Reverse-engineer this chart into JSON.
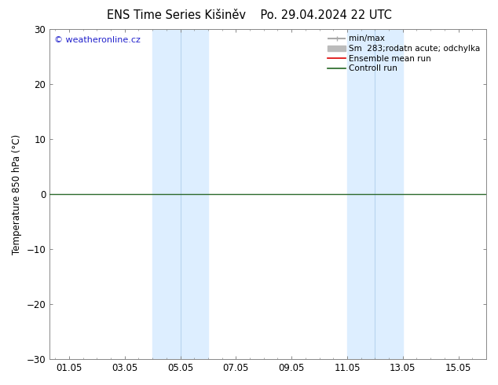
{
  "title_left": "ENS Time Series Kišiněv",
  "title_right": "Po. 29.04.2024 22 UTC",
  "ylabel": "Temperature 850 hPa (°C)",
  "ylim": [
    -30,
    30
  ],
  "yticks": [
    -30,
    -20,
    -10,
    0,
    10,
    20,
    30
  ],
  "xtick_labels": [
    "01.05",
    "03.05",
    "05.05",
    "07.05",
    "09.05",
    "11.05",
    "13.05",
    "15.05"
  ],
  "xtick_positions": [
    0,
    2,
    4,
    6,
    8,
    10,
    12,
    14
  ],
  "xlim": [
    -0.7,
    15.0
  ],
  "shade_bands": [
    {
      "x_start": 3.0,
      "x_end": 4.0,
      "has_divider": true,
      "divider": 3.5
    },
    {
      "x_start": 4.0,
      "x_end": 5.0
    },
    {
      "x_start": 10.0,
      "x_end": 11.0,
      "has_divider": true,
      "divider": 10.5
    },
    {
      "x_start": 11.0,
      "x_end": 12.0
    }
  ],
  "shade_color": "#ddeeff",
  "divider_color": "#b8d4ee",
  "zero_line_color": "#2d6a2d",
  "watermark_text": "© weatheronline.cz",
  "watermark_color": "#2222cc",
  "legend_entries": [
    {
      "label": "min/max",
      "color": "#aaaaaa",
      "lw": 1.5
    },
    {
      "label": "Sm  283;rodatn acute; odchylka",
      "color": "#bbbbbb",
      "lw": 5
    },
    {
      "label": "Ensemble mean run",
      "color": "#dd0000",
      "lw": 1.2
    },
    {
      "label": "Controll run",
      "color": "#226622",
      "lw": 1.2
    }
  ],
  "bg_color": "#ffffff",
  "spine_color": "#888888",
  "title_fontsize": 10.5,
  "axis_label_fontsize": 8.5,
  "tick_fontsize": 8.5,
  "watermark_fontsize": 8,
  "legend_fontsize": 7.5
}
